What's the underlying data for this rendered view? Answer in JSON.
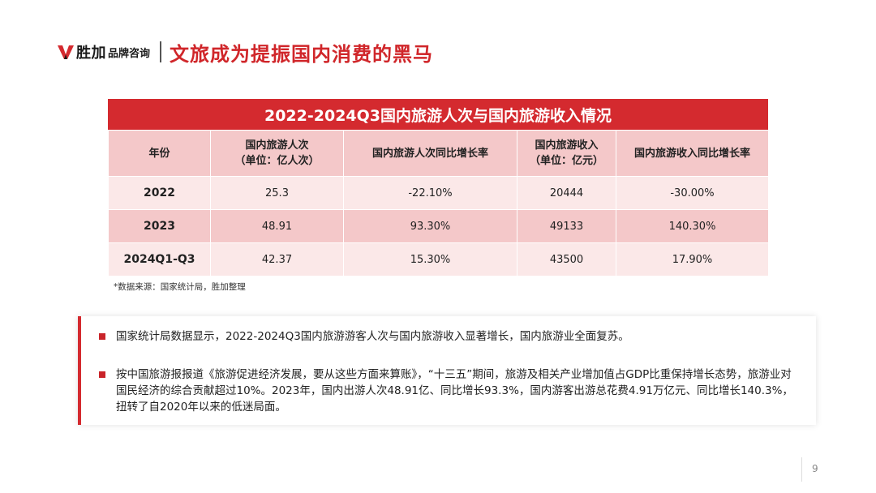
{
  "header": {
    "logo_name": "胜加",
    "logo_sub": "品牌咨询",
    "title": "文旅成为提振国内消费的黑马"
  },
  "table": {
    "caption": "2022-2024Q3国内旅游人次与国内旅游收入情况",
    "headers": [
      "年份",
      "国内旅游人次\n（单位：亿人次）",
      "国内旅游人次同比增长率",
      "国内旅游收入\n（单位：亿元）",
      "国内旅游收入同比增长率"
    ],
    "header_lines": {
      "h1a": "国内旅游人次",
      "h1b": "（单位：亿人次）",
      "h3a": "国内旅游收入",
      "h3b": "（单位：亿元）"
    },
    "rows": [
      [
        "2022",
        "25.3",
        "-22.10%",
        "20444",
        "-30.00%"
      ],
      [
        "2023",
        "48.91",
        "93.30%",
        "49133",
        "140.30%"
      ],
      [
        "2024Q1-Q3",
        "42.37",
        "15.30%",
        "43500",
        "17.90%"
      ]
    ]
  },
  "source": "*数据来源：国家统计局，胜加整理",
  "notes": [
    "国家统计局数据显示，2022-2024Q3国内旅游游客人次与国内旅游收入显著增长，国内旅游业全面复苏。",
    "按中国旅游报报道《旅游促进经济发展，要从这些方面来算账》，“十三五”期间，旅游及相关产业增加值占GDP比重保持增长态势，旅游业对国民经济的综合贡献超过10%。2023年，国内出游人次48.91亿、同比增长93.3%，国内游客出游总花费4.91万亿元、同比增长140.3%，扭转了自2020年以来的低迷局面。"
  ],
  "page_number": "9",
  "colors": {
    "accent": "#d42a2f",
    "header_fill": "#f4c8c9",
    "row_light": "#fbe8e8"
  }
}
